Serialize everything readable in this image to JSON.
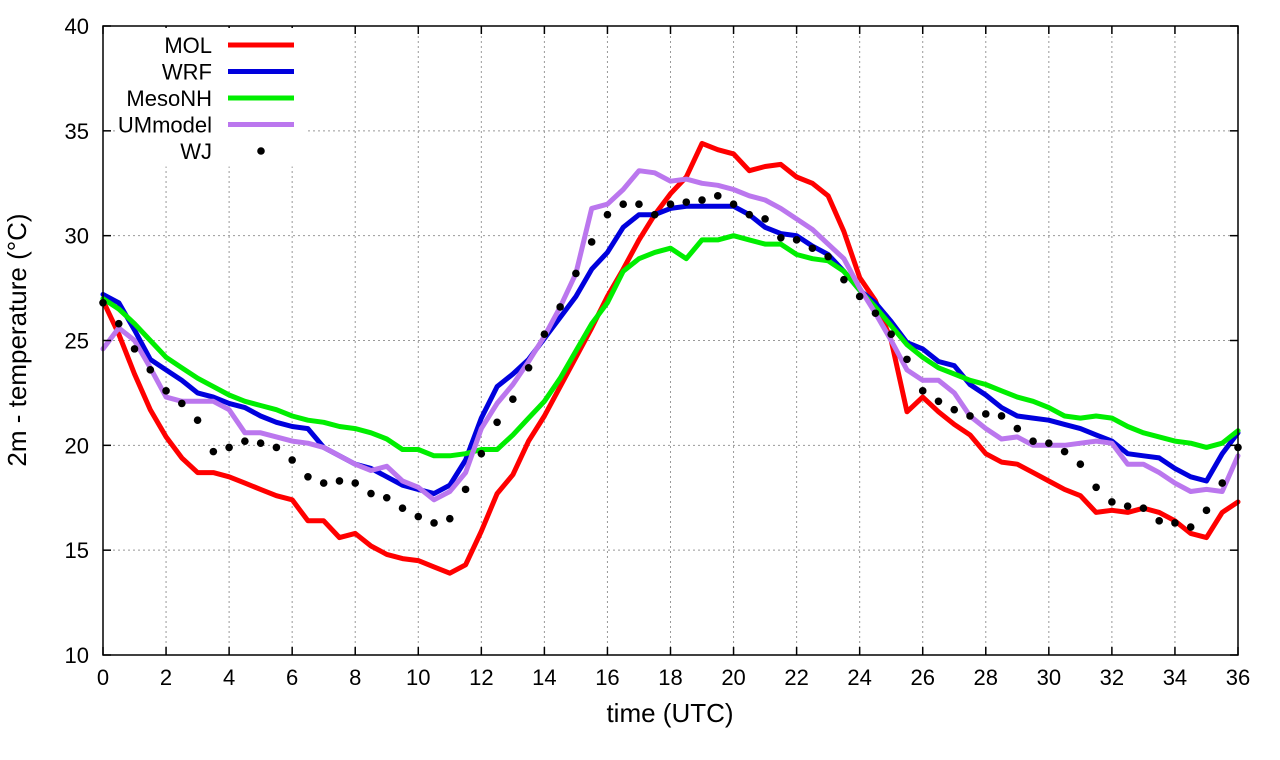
{
  "chart_data": {
    "type": "line",
    "title": "",
    "xlabel": "time (UTC)",
    "ylabel": "2m - temperature (°C)",
    "xlim": [
      0,
      36
    ],
    "ylim": [
      10,
      40
    ],
    "xticks": [
      0,
      2,
      4,
      6,
      8,
      10,
      12,
      14,
      16,
      18,
      20,
      22,
      24,
      26,
      28,
      30,
      32,
      34,
      36
    ],
    "yticks": [
      10,
      15,
      20,
      25,
      30,
      35,
      40
    ],
    "grid": true,
    "legend_position": "top-left",
    "series": [
      {
        "name": "MOL",
        "color": "#ff0000",
        "style": "line",
        "x": [
          0,
          0.5,
          1,
          1.5,
          2,
          2.5,
          3,
          3.5,
          4,
          4.5,
          5,
          5.5,
          6,
          6.5,
          7,
          7.5,
          8,
          8.5,
          9,
          9.5,
          10,
          10.5,
          11,
          11.5,
          12,
          12.5,
          13,
          13.5,
          14,
          14.5,
          15,
          15.5,
          16,
          16.5,
          17,
          17.5,
          18,
          18.5,
          19,
          19.5,
          20,
          20.5,
          21,
          21.5,
          22,
          22.5,
          23,
          23.5,
          24,
          24.5,
          25,
          25.5,
          26,
          26.5,
          27,
          27.5,
          28,
          28.5,
          29,
          29.5,
          30,
          30.5,
          31,
          31.5,
          32,
          32.5,
          33,
          33.5,
          34,
          34.5,
          35,
          35.5,
          36
        ],
        "y": [
          26.9,
          25.3,
          23.4,
          21.7,
          20.4,
          19.4,
          18.7,
          18.7,
          18.5,
          18.2,
          17.9,
          17.6,
          17.4,
          16.4,
          16.4,
          15.6,
          15.8,
          15.2,
          14.8,
          14.6,
          14.5,
          14.2,
          13.9,
          14.3,
          15.9,
          17.7,
          18.6,
          20.2,
          21.4,
          22.8,
          24.2,
          25.6,
          27.1,
          28.4,
          29.8,
          31.0,
          32.0,
          32.8,
          34.4,
          34.1,
          33.9,
          33.1,
          33.3,
          33.4,
          32.8,
          32.5,
          31.9,
          30.2,
          28.0,
          26.9,
          25.0,
          21.6,
          22.3,
          21.6,
          21.0,
          20.5,
          19.6,
          19.2,
          19.1,
          18.7,
          18.3,
          17.9,
          17.6,
          16.8,
          16.9,
          16.8,
          17.0,
          16.8,
          16.4,
          15.8,
          15.6,
          16.8,
          17.3
        ]
      },
      {
        "name": "WRF",
        "color": "#0000dd",
        "style": "line",
        "x": [
          0,
          0.5,
          1,
          1.5,
          2,
          2.5,
          3,
          3.5,
          4,
          4.5,
          5,
          5.5,
          6,
          6.5,
          7,
          7.5,
          8,
          8.5,
          9,
          9.5,
          10,
          10.5,
          11,
          11.5,
          12,
          12.5,
          13,
          13.5,
          14,
          14.5,
          15,
          15.5,
          16,
          16.5,
          17,
          17.5,
          18,
          18.5,
          19,
          19.5,
          20,
          20.5,
          21,
          21.5,
          22,
          22.5,
          23,
          23.5,
          24,
          24.5,
          25,
          25.5,
          26,
          26.5,
          27,
          27.5,
          28,
          28.5,
          29,
          29.5,
          30,
          30.5,
          31,
          31.5,
          32,
          32.5,
          33,
          33.5,
          34,
          34.5,
          35,
          35.5,
          36
        ],
        "y": [
          27.2,
          26.8,
          25.5,
          24.1,
          23.6,
          23.1,
          22.5,
          22.3,
          22.0,
          21.8,
          21.4,
          21.1,
          20.9,
          20.8,
          19.9,
          19.5,
          19.1,
          18.9,
          18.5,
          18.1,
          17.9,
          17.7,
          18.1,
          19.3,
          21.3,
          22.8,
          23.4,
          24.1,
          25.1,
          26.1,
          27.1,
          28.4,
          29.2,
          30.4,
          31.0,
          31.0,
          31.3,
          31.4,
          31.4,
          31.4,
          31.4,
          31.0,
          30.4,
          30.1,
          30.0,
          29.5,
          29.1,
          28.3,
          27.4,
          26.8,
          25.9,
          24.9,
          24.6,
          24.0,
          23.8,
          22.9,
          22.4,
          21.8,
          21.4,
          21.3,
          21.2,
          21.0,
          20.8,
          20.5,
          20.2,
          19.6,
          19.5,
          19.4,
          18.9,
          18.5,
          18.3,
          19.6,
          20.6
        ]
      },
      {
        "name": "MesoNH",
        "color": "#00ee00",
        "style": "line",
        "x": [
          0,
          0.5,
          1,
          1.5,
          2,
          2.5,
          3,
          3.5,
          4,
          4.5,
          5,
          5.5,
          6,
          6.5,
          7,
          7.5,
          8,
          8.5,
          9,
          9.5,
          10,
          10.5,
          11,
          11.5,
          12,
          12.5,
          13,
          13.5,
          14,
          14.5,
          15,
          15.5,
          16,
          16.5,
          17,
          17.5,
          18,
          18.5,
          19,
          19.5,
          20,
          20.5,
          21,
          21.5,
          22,
          22.5,
          23,
          23.5,
          24,
          24.5,
          25,
          25.5,
          26,
          26.5,
          27,
          27.5,
          28,
          28.5,
          29,
          29.5,
          30,
          30.5,
          31,
          31.5,
          32,
          32.5,
          33,
          33.5,
          34,
          34.5,
          35,
          35.5,
          36
        ],
        "y": [
          27.0,
          26.5,
          25.8,
          25.0,
          24.2,
          23.7,
          23.2,
          22.8,
          22.4,
          22.1,
          21.9,
          21.7,
          21.4,
          21.2,
          21.1,
          20.9,
          20.8,
          20.6,
          20.3,
          19.8,
          19.8,
          19.5,
          19.5,
          19.6,
          19.8,
          19.8,
          20.5,
          21.3,
          22.1,
          23.2,
          24.5,
          25.8,
          26.8,
          28.3,
          28.9,
          29.2,
          29.4,
          28.9,
          29.8,
          29.8,
          30.0,
          29.8,
          29.6,
          29.6,
          29.1,
          28.9,
          28.8,
          28.3,
          27.4,
          26.6,
          25.7,
          24.8,
          24.2,
          23.7,
          23.4,
          23.1,
          22.9,
          22.6,
          22.3,
          22.1,
          21.8,
          21.4,
          21.3,
          21.4,
          21.3,
          20.9,
          20.6,
          20.4,
          20.2,
          20.1,
          19.9,
          20.1,
          20.7
        ]
      },
      {
        "name": "UMmodel",
        "color": "#bb77ee",
        "style": "line",
        "x": [
          0,
          0.5,
          1,
          1.5,
          2,
          2.5,
          3,
          3.5,
          4,
          4.5,
          5,
          5.5,
          6,
          6.5,
          7,
          7.5,
          8,
          8.5,
          9,
          9.5,
          10,
          10.5,
          11,
          11.5,
          12,
          12.5,
          13,
          13.5,
          14,
          14.5,
          15,
          15.5,
          16,
          16.5,
          17,
          17.5,
          18,
          18.5,
          19,
          19.5,
          20,
          20.5,
          21,
          21.5,
          22,
          22.5,
          23,
          23.5,
          24,
          24.5,
          25,
          25.5,
          26,
          26.5,
          27,
          27.5,
          28,
          28.5,
          29,
          29.5,
          30,
          30.5,
          31,
          31.5,
          32,
          32.5,
          33,
          33.5,
          34,
          34.5,
          35,
          35.5,
          36
        ],
        "y": [
          24.6,
          25.6,
          25.0,
          23.7,
          22.3,
          22.1,
          22.1,
          22.1,
          21.7,
          20.6,
          20.6,
          20.4,
          20.2,
          20.1,
          19.9,
          19.5,
          19.1,
          18.8,
          19.0,
          18.3,
          18.0,
          17.4,
          17.8,
          18.7,
          20.8,
          22.0,
          22.9,
          24.0,
          25.2,
          26.6,
          28.2,
          31.3,
          31.5,
          32.2,
          33.1,
          33.0,
          32.6,
          32.7,
          32.5,
          32.4,
          32.2,
          31.9,
          31.7,
          31.3,
          30.8,
          30.3,
          29.6,
          28.9,
          27.5,
          26.3,
          25.0,
          23.6,
          23.1,
          23.1,
          22.5,
          21.4,
          20.8,
          20.3,
          20.4,
          20.0,
          20.0,
          20.0,
          20.1,
          20.2,
          20.1,
          19.1,
          19.1,
          18.7,
          18.2,
          17.8,
          17.9,
          17.8,
          19.5
        ]
      },
      {
        "name": "WJ",
        "color": "#000000",
        "style": "dots",
        "x": [
          0,
          0.5,
          1,
          1.5,
          2,
          2.5,
          3,
          3.5,
          4,
          4.5,
          5,
          5.5,
          6,
          6.5,
          7,
          7.5,
          8,
          8.5,
          9,
          9.5,
          10,
          10.5,
          11,
          11.5,
          12,
          12.5,
          13,
          13.5,
          14,
          14.5,
          15,
          15.5,
          16,
          16.5,
          17,
          17.5,
          18,
          18.5,
          19,
          19.5,
          20,
          20.5,
          21,
          21.5,
          22,
          22.5,
          23,
          23.5,
          24,
          24.5,
          25,
          25.5,
          26,
          26.5,
          27,
          27.5,
          28,
          28.5,
          29,
          29.5,
          30,
          30.5,
          31,
          31.5,
          32,
          32.5,
          33,
          33.5,
          34,
          34.5,
          35,
          35.5,
          36
        ],
        "y": [
          26.8,
          25.8,
          24.6,
          23.6,
          22.6,
          22.0,
          21.2,
          19.7,
          19.9,
          20.2,
          20.1,
          19.9,
          19.3,
          18.5,
          18.2,
          18.3,
          18.2,
          17.7,
          17.5,
          17.0,
          16.6,
          16.3,
          16.5,
          17.9,
          19.6,
          21.1,
          22.2,
          23.7,
          25.3,
          26.6,
          28.2,
          29.7,
          31.0,
          31.5,
          31.5,
          31.0,
          31.5,
          31.6,
          31.7,
          31.9,
          31.5,
          31.0,
          30.8,
          29.9,
          29.8,
          29.4,
          29.0,
          27.9,
          27.1,
          26.3,
          25.3,
          24.1,
          22.6,
          22.1,
          21.7,
          21.4,
          21.5,
          21.4,
          20.8,
          20.2,
          20.1,
          19.7,
          19.1,
          18.0,
          17.3,
          17.1,
          17.0,
          16.4,
          16.3,
          16.1,
          16.9,
          18.2,
          19.9
        ]
      }
    ]
  }
}
